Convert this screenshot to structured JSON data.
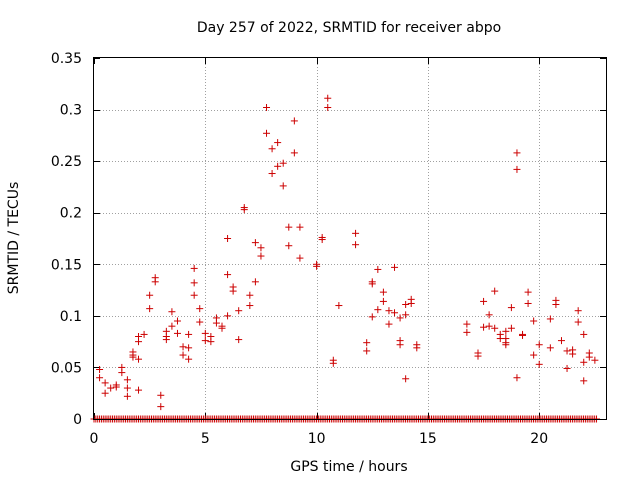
{
  "chart_data": {
    "type": "scatter",
    "title": "Day 257 of 2022, SRMTID for receiver abpo",
    "xlabel": "GPS time / hours",
    "ylabel": "SRMTID / TECUs",
    "xlim": [
      0,
      23
    ],
    "ylim": [
      0,
      0.35
    ],
    "xticks": [
      0,
      5,
      10,
      15,
      20
    ],
    "xtick_labels": [
      "0",
      "5",
      "10",
      "15",
      "20"
    ],
    "yticks": [
      0,
      0.05,
      0.1,
      0.15,
      0.2,
      0.25,
      0.3,
      0.35
    ],
    "ytick_labels": [
      "0",
      "0.05",
      "0.1",
      "0.15",
      "0.2",
      "0.25",
      "0.3",
      "0.35"
    ],
    "grid": true,
    "marker": "+",
    "color": "#cc0000",
    "baseline": {
      "y": 0,
      "x_start": 0,
      "x_end": 22.6,
      "x_step": 0.0833
    },
    "series": [
      {
        "name": "SRMTID",
        "points": [
          [
            0.25,
            0.048
          ],
          [
            0.25,
            0.04
          ],
          [
            0.5,
            0.035
          ],
          [
            0.5,
            0.025
          ],
          [
            0.75,
            0.03
          ],
          [
            1.0,
            0.033
          ],
          [
            1.0,
            0.031
          ],
          [
            1.25,
            0.05
          ],
          [
            1.25,
            0.045
          ],
          [
            1.5,
            0.038
          ],
          [
            1.5,
            0.03
          ],
          [
            1.5,
            0.022
          ],
          [
            1.75,
            0.065
          ],
          [
            1.75,
            0.062
          ],
          [
            1.75,
            0.06
          ],
          [
            2.0,
            0.08
          ],
          [
            2.0,
            0.075
          ],
          [
            2.0,
            0.058
          ],
          [
            2.0,
            0.028
          ],
          [
            2.25,
            0.082
          ],
          [
            2.5,
            0.12
          ],
          [
            2.5,
            0.107
          ],
          [
            2.75,
            0.137
          ],
          [
            2.75,
            0.133
          ],
          [
            3.0,
            0.023
          ],
          [
            3.0,
            0.012
          ],
          [
            3.25,
            0.085
          ],
          [
            3.25,
            0.08
          ],
          [
            3.25,
            0.077
          ],
          [
            3.5,
            0.104
          ],
          [
            3.5,
            0.09
          ],
          [
            3.75,
            0.095
          ],
          [
            3.75,
            0.083
          ],
          [
            4.0,
            0.07
          ],
          [
            4.0,
            0.062
          ],
          [
            4.25,
            0.082
          ],
          [
            4.25,
            0.069
          ],
          [
            4.25,
            0.058
          ],
          [
            4.5,
            0.146
          ],
          [
            4.5,
            0.132
          ],
          [
            4.5,
            0.12
          ],
          [
            4.75,
            0.107
          ],
          [
            4.75,
            0.094
          ],
          [
            5.0,
            0.083
          ],
          [
            5.0,
            0.076
          ],
          [
            5.25,
            0.075
          ],
          [
            5.25,
            0.08
          ],
          [
            5.5,
            0.098
          ],
          [
            5.5,
            0.093
          ],
          [
            5.75,
            0.09
          ],
          [
            5.75,
            0.088
          ],
          [
            6.0,
            0.175
          ],
          [
            6.0,
            0.14
          ],
          [
            6.0,
            0.1
          ],
          [
            6.25,
            0.128
          ],
          [
            6.25,
            0.124
          ],
          [
            6.5,
            0.105
          ],
          [
            6.5,
            0.077
          ],
          [
            6.75,
            0.205
          ],
          [
            6.75,
            0.203
          ],
          [
            7.0,
            0.12
          ],
          [
            7.0,
            0.11
          ],
          [
            7.25,
            0.171
          ],
          [
            7.25,
            0.133
          ],
          [
            7.5,
            0.166
          ],
          [
            7.5,
            0.158
          ],
          [
            7.75,
            0.302
          ],
          [
            7.75,
            0.277
          ],
          [
            8.0,
            0.262
          ],
          [
            8.0,
            0.238
          ],
          [
            8.25,
            0.268
          ],
          [
            8.25,
            0.245
          ],
          [
            8.5,
            0.248
          ],
          [
            8.5,
            0.226
          ],
          [
            8.75,
            0.186
          ],
          [
            8.75,
            0.168
          ],
          [
            9.0,
            0.289
          ],
          [
            9.0,
            0.258
          ],
          [
            9.25,
            0.186
          ],
          [
            9.25,
            0.156
          ],
          [
            10.0,
            0.15
          ],
          [
            10.0,
            0.148
          ],
          [
            10.25,
            0.176
          ],
          [
            10.25,
            0.174
          ],
          [
            10.5,
            0.311
          ],
          [
            10.5,
            0.302
          ],
          [
            10.75,
            0.057
          ],
          [
            10.75,
            0.054
          ],
          [
            11.0,
            0.11
          ],
          [
            11.75,
            0.18
          ],
          [
            11.75,
            0.169
          ],
          [
            12.25,
            0.074
          ],
          [
            12.25,
            0.066
          ],
          [
            12.5,
            0.133
          ],
          [
            12.5,
            0.131
          ],
          [
            12.5,
            0.099
          ],
          [
            12.75,
            0.145
          ],
          [
            12.75,
            0.106
          ],
          [
            13.0,
            0.123
          ],
          [
            13.0,
            0.114
          ],
          [
            13.25,
            0.105
          ],
          [
            13.25,
            0.092
          ],
          [
            13.5,
            0.147
          ],
          [
            13.5,
            0.103
          ],
          [
            13.75,
            0.076
          ],
          [
            13.75,
            0.072
          ],
          [
            13.75,
            0.098
          ],
          [
            14.0,
            0.111
          ],
          [
            14.0,
            0.101
          ],
          [
            14.0,
            0.039
          ],
          [
            14.25,
            0.116
          ],
          [
            14.25,
            0.112
          ],
          [
            14.5,
            0.072
          ],
          [
            14.5,
            0.069
          ],
          [
            16.75,
            0.092
          ],
          [
            16.75,
            0.084
          ],
          [
            17.25,
            0.064
          ],
          [
            17.25,
            0.061
          ],
          [
            17.5,
            0.114
          ],
          [
            17.5,
            0.089
          ],
          [
            17.75,
            0.101
          ],
          [
            17.75,
            0.09
          ],
          [
            18.0,
            0.124
          ],
          [
            18.0,
            0.088
          ],
          [
            18.25,
            0.082
          ],
          [
            18.25,
            0.078
          ],
          [
            18.5,
            0.085
          ],
          [
            18.5,
            0.078
          ],
          [
            18.5,
            0.074
          ],
          [
            18.5,
            0.072
          ],
          [
            18.75,
            0.108
          ],
          [
            18.75,
            0.088
          ],
          [
            19.0,
            0.258
          ],
          [
            19.0,
            0.242
          ],
          [
            19.0,
            0.04
          ],
          [
            19.25,
            0.082
          ],
          [
            19.25,
            0.081
          ],
          [
            19.5,
            0.123
          ],
          [
            19.5,
            0.112
          ],
          [
            19.75,
            0.095
          ],
          [
            19.75,
            0.062
          ],
          [
            20.0,
            0.072
          ],
          [
            20.0,
            0.053
          ],
          [
            20.5,
            0.097
          ],
          [
            20.5,
            0.069
          ],
          [
            20.75,
            0.115
          ],
          [
            20.75,
            0.111
          ],
          [
            21.0,
            0.076
          ],
          [
            21.25,
            0.066
          ],
          [
            21.25,
            0.049
          ],
          [
            21.5,
            0.067
          ],
          [
            21.5,
            0.063
          ],
          [
            21.75,
            0.105
          ],
          [
            21.75,
            0.094
          ],
          [
            22.0,
            0.082
          ],
          [
            22.0,
            0.055
          ],
          [
            22.0,
            0.037
          ],
          [
            22.25,
            0.064
          ],
          [
            22.25,
            0.06
          ],
          [
            22.5,
            0.057
          ]
        ]
      }
    ]
  }
}
